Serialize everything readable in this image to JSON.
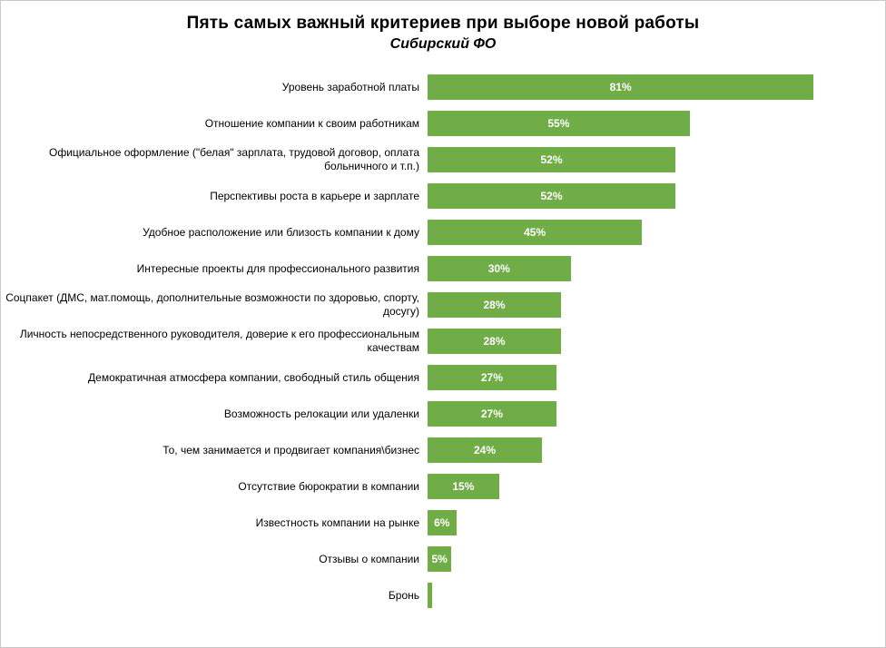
{
  "chart_data": {
    "type": "bar",
    "orientation": "horizontal",
    "title": "Пять самых важный критериев при выборе новой работы",
    "subtitle": "Сибирский ФО",
    "bar_color": "#70AD47",
    "value_label_color": "#FFFFFF",
    "xlim": [
      0,
      100
    ],
    "grid": false,
    "legend": "none",
    "categories": [
      "Уровень заработной платы",
      "Отношение компании к своим работникам",
      "Официальное оформление (\"белая\" зарплата, трудовой договор, оплата больничного и т.п.)",
      "Перспективы роста в карьере и зарплате",
      "Удобное расположение или близость компании к дому",
      "Интересные проекты для профессионального развития",
      "Соцпакет (ДМС, мат.помощь, дополнительные возможности по здоровью, спорту, досугу)",
      "Личность непосредственного руководителя, доверие к его профессиональным качествам",
      "Демократичная атмосфера компании, свободный стиль общения",
      "Возможность релокации или удаленки",
      "То, чем занимается и продвигает компания\\бизнес",
      "Отсутствие бюрократии в компании",
      "Известность компании на рынке",
      "Отзывы о компании",
      "Бронь"
    ],
    "values": [
      81,
      55,
      52,
      52,
      45,
      30,
      28,
      28,
      27,
      27,
      24,
      15,
      6,
      5,
      1
    ],
    "value_labels": [
      "81%",
      "55%",
      "52%",
      "52%",
      "45%",
      "30%",
      "28%",
      "28%",
      "27%",
      "27%",
      "24%",
      "15%",
      "6%",
      "5%",
      ""
    ]
  }
}
